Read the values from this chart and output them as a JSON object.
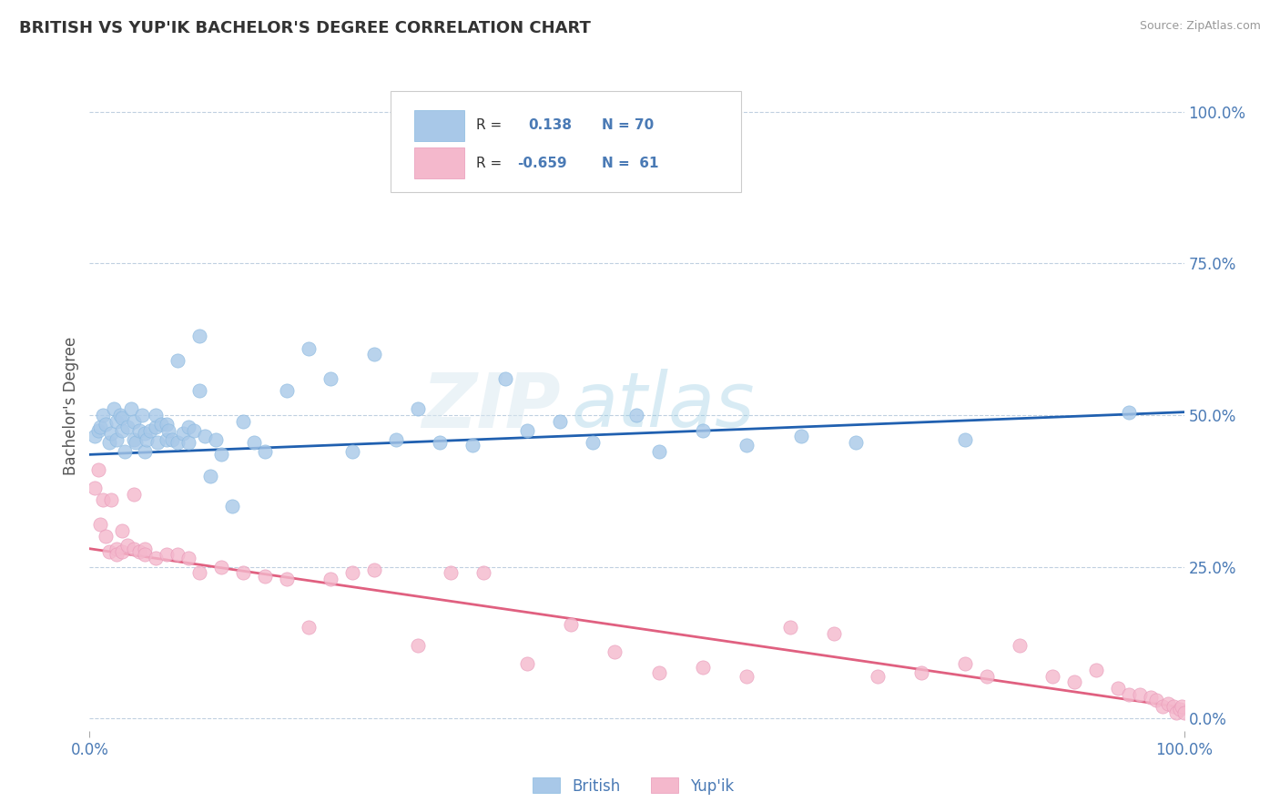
{
  "title": "BRITISH VS YUP'IK BACHELOR'S DEGREE CORRELATION CHART",
  "source": "Source: ZipAtlas.com",
  "ylabel": "Bachelor's Degree",
  "r_british": 0.138,
  "n_british": 70,
  "r_yupik": -0.659,
  "n_yupik": 61,
  "blue_color": "#a8c8e8",
  "pink_color": "#f4b8cc",
  "blue_line_color": "#2060b0",
  "pink_line_color": "#e06080",
  "title_color": "#333333",
  "axis_label_color": "#4a7ab5",
  "tick_color": "#4a7ab5",
  "grid_color": "#c0d0e0",
  "background_color": "#ffffff",
  "legend_text_color": "#4a7ab5",
  "legend_R_color": "#333333",
  "blue_line_y0": 0.435,
  "blue_line_y1": 0.505,
  "pink_line_y0": 0.28,
  "pink_line_y1": 0.018,
  "ylim": [
    -0.02,
    1.05
  ],
  "xlim": [
    0.0,
    1.0
  ],
  "blue_x": [
    0.005,
    0.008,
    0.01,
    0.012,
    0.015,
    0.018,
    0.02,
    0.022,
    0.025,
    0.025,
    0.028,
    0.03,
    0.03,
    0.032,
    0.035,
    0.038,
    0.04,
    0.04,
    0.042,
    0.045,
    0.048,
    0.05,
    0.05,
    0.052,
    0.055,
    0.06,
    0.06,
    0.062,
    0.065,
    0.07,
    0.07,
    0.072,
    0.075,
    0.08,
    0.08,
    0.085,
    0.09,
    0.09,
    0.095,
    0.1,
    0.1,
    0.105,
    0.11,
    0.115,
    0.12,
    0.13,
    0.14,
    0.15,
    0.16,
    0.18,
    0.2,
    0.22,
    0.24,
    0.26,
    0.28,
    0.3,
    0.32,
    0.35,
    0.38,
    0.4,
    0.43,
    0.46,
    0.5,
    0.52,
    0.56,
    0.6,
    0.65,
    0.7,
    0.8,
    0.95
  ],
  "blue_y": [
    0.465,
    0.475,
    0.48,
    0.5,
    0.485,
    0.455,
    0.47,
    0.51,
    0.46,
    0.49,
    0.5,
    0.475,
    0.495,
    0.44,
    0.48,
    0.51,
    0.46,
    0.49,
    0.455,
    0.475,
    0.5,
    0.44,
    0.47,
    0.46,
    0.475,
    0.48,
    0.5,
    0.455,
    0.485,
    0.46,
    0.485,
    0.475,
    0.46,
    0.59,
    0.455,
    0.47,
    0.48,
    0.455,
    0.475,
    0.63,
    0.54,
    0.465,
    0.4,
    0.46,
    0.435,
    0.35,
    0.49,
    0.455,
    0.44,
    0.54,
    0.61,
    0.56,
    0.44,
    0.6,
    0.46,
    0.51,
    0.455,
    0.45,
    0.56,
    0.475,
    0.49,
    0.455,
    0.5,
    0.44,
    0.475,
    0.45,
    0.465,
    0.455,
    0.46,
    0.505
  ],
  "pink_x": [
    0.005,
    0.008,
    0.01,
    0.012,
    0.015,
    0.018,
    0.02,
    0.025,
    0.025,
    0.03,
    0.03,
    0.035,
    0.04,
    0.04,
    0.045,
    0.05,
    0.05,
    0.06,
    0.07,
    0.08,
    0.09,
    0.1,
    0.12,
    0.14,
    0.16,
    0.18,
    0.2,
    0.22,
    0.24,
    0.26,
    0.3,
    0.33,
    0.36,
    0.4,
    0.44,
    0.48,
    0.52,
    0.56,
    0.6,
    0.64,
    0.68,
    0.72,
    0.76,
    0.8,
    0.82,
    0.85,
    0.88,
    0.9,
    0.92,
    0.94,
    0.95,
    0.96,
    0.97,
    0.975,
    0.98,
    0.985,
    0.99,
    0.993,
    0.996,
    0.998,
    1.0
  ],
  "pink_y": [
    0.38,
    0.41,
    0.32,
    0.36,
    0.3,
    0.275,
    0.36,
    0.28,
    0.27,
    0.31,
    0.275,
    0.285,
    0.28,
    0.37,
    0.275,
    0.28,
    0.27,
    0.265,
    0.27,
    0.27,
    0.265,
    0.24,
    0.25,
    0.24,
    0.235,
    0.23,
    0.15,
    0.23,
    0.24,
    0.245,
    0.12,
    0.24,
    0.24,
    0.09,
    0.155,
    0.11,
    0.075,
    0.085,
    0.07,
    0.15,
    0.14,
    0.07,
    0.075,
    0.09,
    0.07,
    0.12,
    0.07,
    0.06,
    0.08,
    0.05,
    0.04,
    0.04,
    0.035,
    0.03,
    0.02,
    0.025,
    0.02,
    0.01,
    0.015,
    0.02,
    0.01
  ]
}
